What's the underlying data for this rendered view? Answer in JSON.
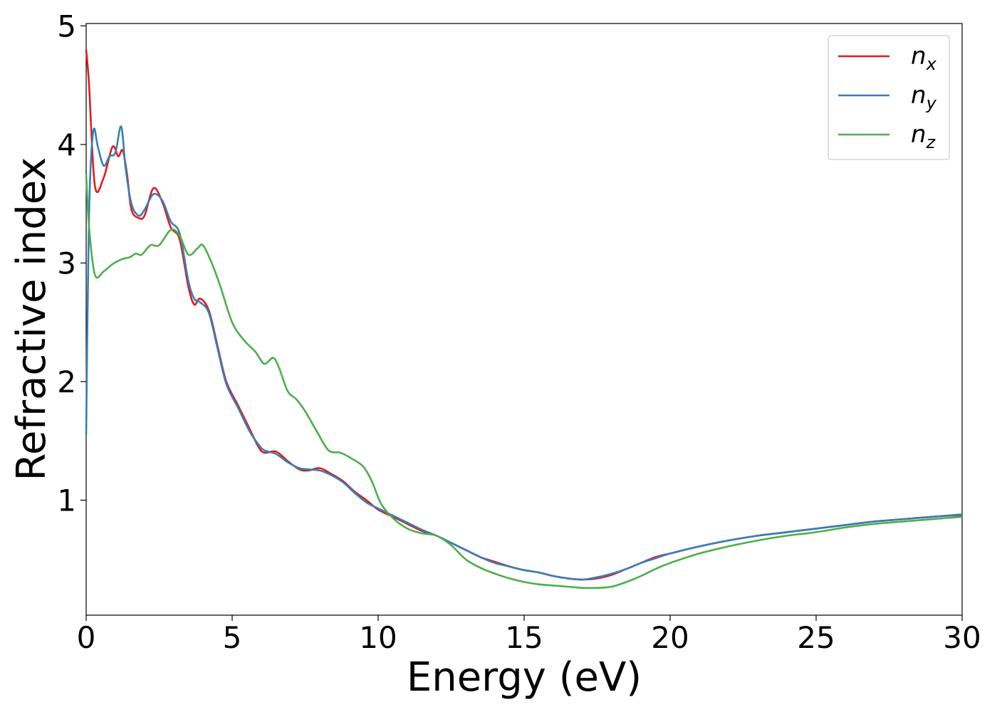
{
  "chart_data": {
    "type": "line",
    "title": "",
    "xlabel": "Energy (eV)",
    "ylabel": "Refractive index",
    "xlim": [
      0,
      30
    ],
    "ylim": [
      0.03,
      5.02
    ],
    "xticks": [
      "0",
      "5",
      "10",
      "15",
      "20",
      "25",
      "30"
    ],
    "yticks": [
      "1",
      "2",
      "3",
      "4",
      "5"
    ],
    "grid": false,
    "legend_position": "top-right",
    "series": [
      {
        "name": "n_x",
        "legend_base": "n",
        "legend_sub": "x",
        "color": "#e41a1c",
        "points": [
          [
            0,
            4.8
          ],
          [
            0.1,
            4.5
          ],
          [
            0.3,
            3.65
          ],
          [
            0.6,
            3.72
          ],
          [
            0.9,
            3.98
          ],
          [
            1.1,
            3.9
          ],
          [
            1.25,
            3.95
          ],
          [
            1.4,
            3.75
          ],
          [
            1.55,
            3.45
          ],
          [
            1.8,
            3.38
          ],
          [
            2.0,
            3.4
          ],
          [
            2.3,
            3.63
          ],
          [
            2.6,
            3.52
          ],
          [
            2.9,
            3.3
          ],
          [
            3.2,
            3.2
          ],
          [
            3.5,
            2.8
          ],
          [
            3.7,
            2.65
          ],
          [
            3.9,
            2.7
          ],
          [
            4.2,
            2.6
          ],
          [
            4.5,
            2.3
          ],
          [
            4.8,
            2.0
          ],
          [
            5.2,
            1.8
          ],
          [
            5.6,
            1.6
          ],
          [
            5.9,
            1.45
          ],
          [
            6.1,
            1.4
          ],
          [
            6.5,
            1.41
          ],
          [
            6.9,
            1.33
          ],
          [
            7.3,
            1.26
          ],
          [
            7.6,
            1.25
          ],
          [
            8.0,
            1.27
          ],
          [
            8.4,
            1.22
          ],
          [
            8.8,
            1.16
          ],
          [
            9.2,
            1.07
          ],
          [
            9.6,
            1.0
          ],
          [
            10.0,
            0.92
          ],
          [
            10.5,
            0.86
          ],
          [
            11.0,
            0.8
          ],
          [
            11.5,
            0.74
          ],
          [
            12.0,
            0.7
          ],
          [
            12.5,
            0.64
          ],
          [
            13.0,
            0.58
          ],
          [
            13.5,
            0.52
          ],
          [
            14.0,
            0.48
          ],
          [
            14.5,
            0.44
          ],
          [
            15.0,
            0.41
          ],
          [
            15.5,
            0.39
          ],
          [
            16.0,
            0.36
          ],
          [
            16.5,
            0.34
          ],
          [
            17.0,
            0.33
          ],
          [
            17.5,
            0.34
          ],
          [
            18.0,
            0.37
          ],
          [
            18.5,
            0.42
          ],
          [
            19.0,
            0.47
          ],
          [
            19.5,
            0.52
          ],
          [
            20.0,
            0.55
          ],
          [
            21.0,
            0.61
          ],
          [
            22.0,
            0.66
          ],
          [
            23.0,
            0.7
          ],
          [
            24.0,
            0.73
          ],
          [
            25.0,
            0.76
          ],
          [
            26.0,
            0.79
          ],
          [
            27.0,
            0.82
          ],
          [
            28.0,
            0.84
          ],
          [
            29.0,
            0.86
          ],
          [
            30.0,
            0.875
          ]
        ]
      },
      {
        "name": "n_y",
        "legend_base": "n",
        "legend_sub": "y",
        "color": "#377eb8",
        "points": [
          [
            0,
            1.55
          ],
          [
            0.05,
            2.6
          ],
          [
            0.12,
            3.6
          ],
          [
            0.25,
            4.12
          ],
          [
            0.4,
            3.98
          ],
          [
            0.6,
            3.82
          ],
          [
            0.8,
            3.9
          ],
          [
            1.0,
            3.93
          ],
          [
            1.2,
            4.15
          ],
          [
            1.35,
            3.8
          ],
          [
            1.55,
            3.5
          ],
          [
            1.8,
            3.4
          ],
          [
            2.0,
            3.45
          ],
          [
            2.3,
            3.58
          ],
          [
            2.6,
            3.53
          ],
          [
            2.9,
            3.35
          ],
          [
            3.2,
            3.25
          ],
          [
            3.5,
            2.85
          ],
          [
            3.7,
            2.7
          ],
          [
            3.9,
            2.67
          ],
          [
            4.2,
            2.58
          ],
          [
            4.5,
            2.28
          ],
          [
            4.8,
            1.98
          ],
          [
            5.2,
            1.78
          ],
          [
            5.6,
            1.58
          ],
          [
            5.9,
            1.47
          ],
          [
            6.1,
            1.42
          ],
          [
            6.5,
            1.39
          ],
          [
            6.9,
            1.32
          ],
          [
            7.3,
            1.27
          ],
          [
            7.6,
            1.26
          ],
          [
            8.0,
            1.25
          ],
          [
            8.4,
            1.21
          ],
          [
            8.8,
            1.15
          ],
          [
            9.2,
            1.06
          ],
          [
            9.6,
            0.98
          ],
          [
            10.0,
            0.93
          ],
          [
            10.5,
            0.87
          ],
          [
            11.0,
            0.81
          ],
          [
            11.5,
            0.75
          ],
          [
            12.0,
            0.7
          ],
          [
            12.5,
            0.64
          ],
          [
            13.0,
            0.58
          ],
          [
            13.5,
            0.52
          ],
          [
            14.0,
            0.47
          ],
          [
            14.5,
            0.44
          ],
          [
            15.0,
            0.41
          ],
          [
            15.5,
            0.39
          ],
          [
            16.0,
            0.36
          ],
          [
            16.5,
            0.34
          ],
          [
            17.0,
            0.33
          ],
          [
            17.5,
            0.35
          ],
          [
            18.0,
            0.38
          ],
          [
            18.5,
            0.42
          ],
          [
            19.0,
            0.47
          ],
          [
            19.5,
            0.51
          ],
          [
            20.0,
            0.55
          ],
          [
            21.0,
            0.61
          ],
          [
            22.0,
            0.66
          ],
          [
            23.0,
            0.7
          ],
          [
            24.0,
            0.73
          ],
          [
            25.0,
            0.76
          ],
          [
            26.0,
            0.79
          ],
          [
            27.0,
            0.82
          ],
          [
            28.0,
            0.84
          ],
          [
            29.0,
            0.86
          ],
          [
            30.0,
            0.88
          ]
        ]
      },
      {
        "name": "n_z",
        "legend_base": "n",
        "legend_sub": "z",
        "color": "#4daf4a",
        "points": [
          [
            0,
            3.75
          ],
          [
            0.1,
            3.3
          ],
          [
            0.3,
            2.9
          ],
          [
            0.6,
            2.93
          ],
          [
            0.9,
            2.99
          ],
          [
            1.2,
            3.03
          ],
          [
            1.5,
            3.05
          ],
          [
            1.7,
            3.08
          ],
          [
            1.9,
            3.07
          ],
          [
            2.2,
            3.15
          ],
          [
            2.5,
            3.15
          ],
          [
            2.9,
            3.28
          ],
          [
            3.2,
            3.23
          ],
          [
            3.5,
            3.07
          ],
          [
            3.8,
            3.12
          ],
          [
            4.0,
            3.15
          ],
          [
            4.3,
            3.0
          ],
          [
            4.6,
            2.8
          ],
          [
            5.0,
            2.5
          ],
          [
            5.4,
            2.35
          ],
          [
            5.8,
            2.25
          ],
          [
            6.1,
            2.15
          ],
          [
            6.4,
            2.2
          ],
          [
            6.6,
            2.12
          ],
          [
            6.9,
            1.92
          ],
          [
            7.2,
            1.85
          ],
          [
            7.5,
            1.75
          ],
          [
            7.9,
            1.58
          ],
          [
            8.3,
            1.42
          ],
          [
            8.7,
            1.4
          ],
          [
            9.1,
            1.35
          ],
          [
            9.5,
            1.28
          ],
          [
            9.8,
            1.15
          ],
          [
            10.1,
            0.97
          ],
          [
            10.5,
            0.85
          ],
          [
            11.0,
            0.76
          ],
          [
            11.5,
            0.72
          ],
          [
            12.0,
            0.7
          ],
          [
            12.5,
            0.62
          ],
          [
            13.0,
            0.5
          ],
          [
            13.5,
            0.43
          ],
          [
            14.0,
            0.38
          ],
          [
            14.5,
            0.34
          ],
          [
            15.0,
            0.31
          ],
          [
            15.5,
            0.29
          ],
          [
            16.0,
            0.28
          ],
          [
            16.5,
            0.27
          ],
          [
            17.0,
            0.26
          ],
          [
            17.5,
            0.26
          ],
          [
            18.0,
            0.27
          ],
          [
            18.5,
            0.31
          ],
          [
            19.0,
            0.36
          ],
          [
            19.5,
            0.42
          ],
          [
            20.0,
            0.47
          ],
          [
            21.0,
            0.55
          ],
          [
            22.0,
            0.61
          ],
          [
            23.0,
            0.66
          ],
          [
            24.0,
            0.7
          ],
          [
            25.0,
            0.73
          ],
          [
            26.0,
            0.77
          ],
          [
            27.0,
            0.8
          ],
          [
            28.0,
            0.82
          ],
          [
            29.0,
            0.84
          ],
          [
            30.0,
            0.86
          ]
        ]
      }
    ]
  }
}
